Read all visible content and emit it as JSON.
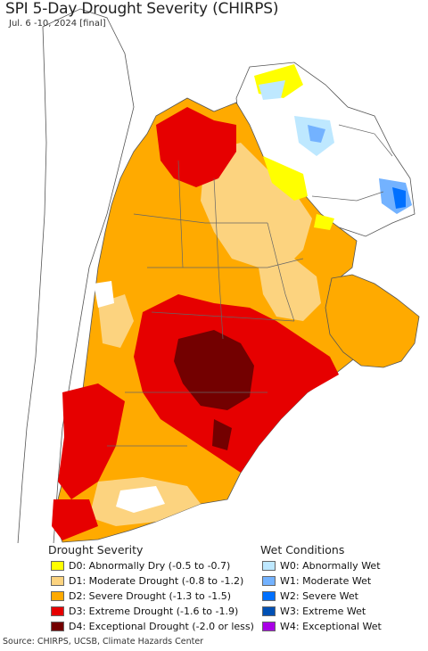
{
  "title": "SPI 5-Day Drought Severity (CHIRPS)",
  "subtitle": "Jul. 6 -10, 2024 [final]",
  "legend": {
    "drought_title": "Drought Severity",
    "wet_title": "Wet Conditions",
    "drought": [
      {
        "label": "D0: Abnormally Dry (-0.5 to -0.7)",
        "color": "#ffff00"
      },
      {
        "label": "D1: Moderate Drought (-0.8 to -1.2)",
        "color": "#fcd37f"
      },
      {
        "label": "D2: Severe Drought (-1.3 to -1.5)",
        "color": "#ffaa00"
      },
      {
        "label": "D3: Extreme Drought (-1.6 to -1.9)",
        "color": "#e60000"
      },
      {
        "label": "D4: Exceptional Drought (-2.0 or less)",
        "color": "#730000"
      }
    ],
    "wet": [
      {
        "label": "W0: Abnormally Wet",
        "color": "#bee8ff"
      },
      {
        "label": "W1: Moderate Wet",
        "color": "#73b2ff"
      },
      {
        "label": "W2: Severe Wet",
        "color": "#0070ff"
      },
      {
        "label": "W3: Extreme Wet",
        "color": "#0050b4"
      },
      {
        "label": "W4: Exceptional Wet",
        "color": "#a900e6"
      }
    ]
  },
  "source": "Source: CHIRPS, UCSB, Climate Hazards Center"
}
